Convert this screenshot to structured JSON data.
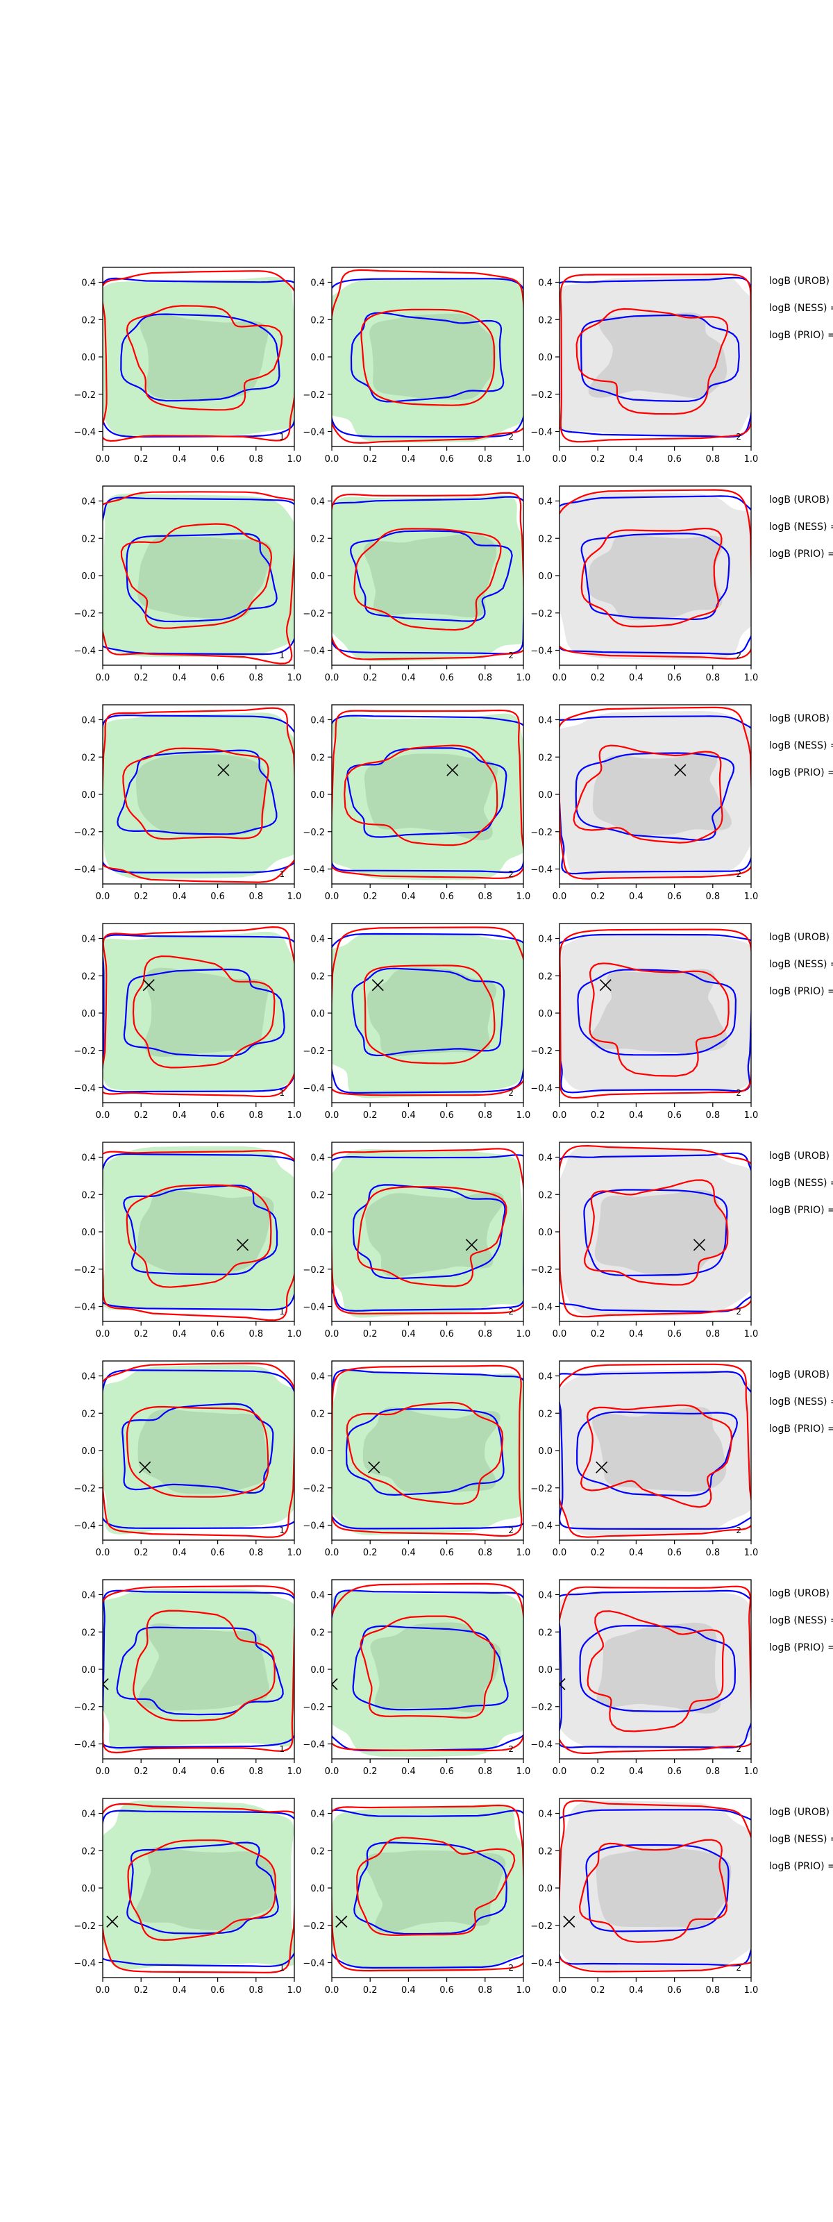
{
  "figure": {
    "tick_labels_x": [
      "0.0",
      "0.2",
      "0.4",
      "0.6",
      "0.8",
      "1.0"
    ],
    "tick_labels_y": [
      "0.4",
      "0.2",
      "0.0",
      "−0.2",
      "−0.4"
    ],
    "column_panel_labels": [
      "1",
      "2",
      "2"
    ],
    "row_labels": [
      "logB (UROB) =",
      "logB (NESS) =",
      "logB (PRIO) ="
    ]
  },
  "chart_data": {
    "type": "contour",
    "grid": {
      "rows": 8,
      "cols": 3
    },
    "xlim": [
      0,
      1.0
    ],
    "ylim": [
      -0.48,
      0.48
    ],
    "xticks": [
      0.0,
      0.2,
      0.4,
      0.6,
      0.8,
      1.0
    ],
    "yticks": [
      0.4,
      0.2,
      0.0,
      -0.2,
      -0.4
    ],
    "grid_lines": false,
    "colors": {
      "fill_green_outer": "#c8f0c8",
      "fill_green_inner": "#b0d8b0",
      "fill_gray_outer": "#e8e8e8",
      "fill_gray_inner": "#cfcfcf",
      "contour_blue": "#0000ff",
      "contour_red": "#ff0000",
      "marker": "#000000"
    },
    "column_fill": [
      "green",
      "green",
      "gray"
    ],
    "rows": [
      {
        "marker": null
      },
      {
        "marker": null
      },
      {
        "marker": [
          0.63,
          0.13
        ]
      },
      {
        "marker": [
          0.24,
          0.15
        ]
      },
      {
        "marker": [
          0.73,
          -0.07
        ]
      },
      {
        "marker": [
          0.22,
          -0.09
        ]
      },
      {
        "marker": [
          0.0,
          -0.08
        ]
      },
      {
        "marker": [
          0.05,
          -0.18
        ]
      }
    ]
  }
}
